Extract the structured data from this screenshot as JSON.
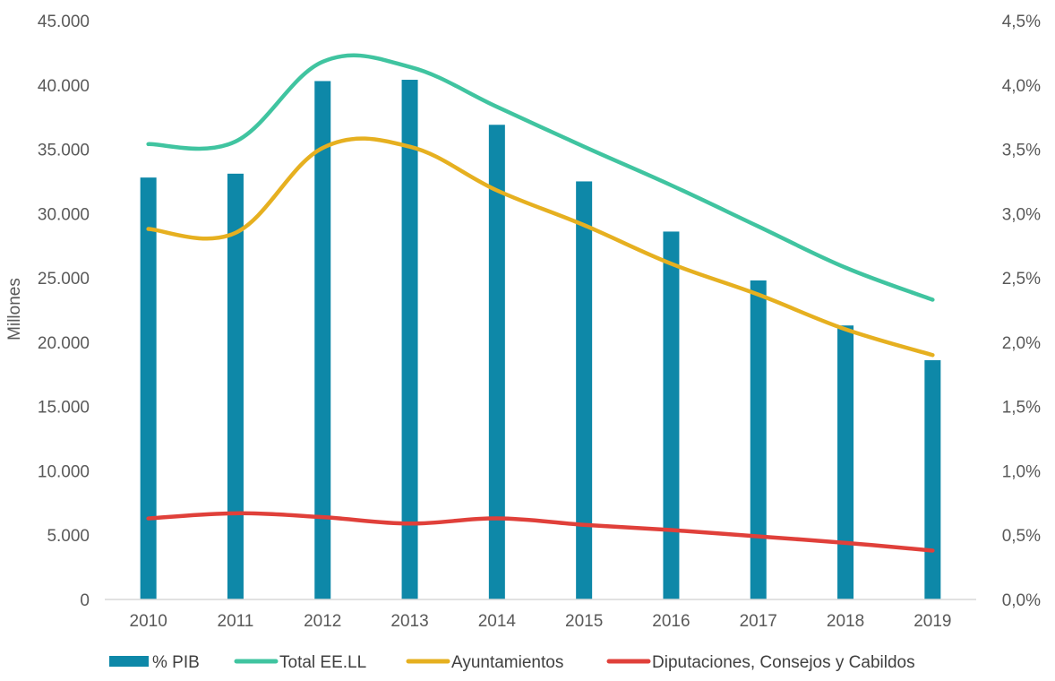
{
  "chart_data": {
    "type": "bar",
    "categories": [
      "2010",
      "2011",
      "2012",
      "2013",
      "2014",
      "2015",
      "2016",
      "2017",
      "2018",
      "2019"
    ],
    "ylabel": "Millones",
    "ylim": [
      0,
      45000
    ],
    "y_ticks": [
      "0",
      "5.000",
      "10.000",
      "15.000",
      "20.000",
      "25.000",
      "30.000",
      "35.000",
      "40.000",
      "45.000"
    ],
    "y2lim": [
      0,
      4.5
    ],
    "y2_ticks": [
      "0,0%",
      "0,5%",
      "1,0%",
      "1,5%",
      "2,0%",
      "2,5%",
      "3,0%",
      "3,5%",
      "4,0%",
      "4,5%"
    ],
    "grid": false,
    "legend_position": "bottom",
    "series": [
      {
        "name": "% PIB",
        "type": "bar",
        "axis": "right",
        "color": "#0E88A8",
        "values": [
          3.28,
          3.31,
          4.03,
          4.04,
          3.69,
          3.25,
          2.86,
          2.48,
          2.13,
          1.86
        ]
      },
      {
        "name": "Total EE.LL",
        "type": "line",
        "axis": "left",
        "color": "#40C4A0",
        "values": [
          35400,
          35600,
          41800,
          41400,
          38300,
          35200,
          32200,
          29000,
          25800,
          23300
        ]
      },
      {
        "name": "Ayuntamientos",
        "type": "line",
        "axis": "left",
        "color": "#E6B020",
        "values": [
          28800,
          28500,
          35100,
          35200,
          31800,
          29100,
          26100,
          23700,
          21000,
          19000
        ]
      },
      {
        "name": "Diputaciones, Consejos y Cabildos",
        "type": "line",
        "axis": "left",
        "color": "#E0403A",
        "values": [
          6300,
          6700,
          6400,
          5900,
          6300,
          5800,
          5400,
          4900,
          4400,
          3800
        ]
      }
    ]
  }
}
